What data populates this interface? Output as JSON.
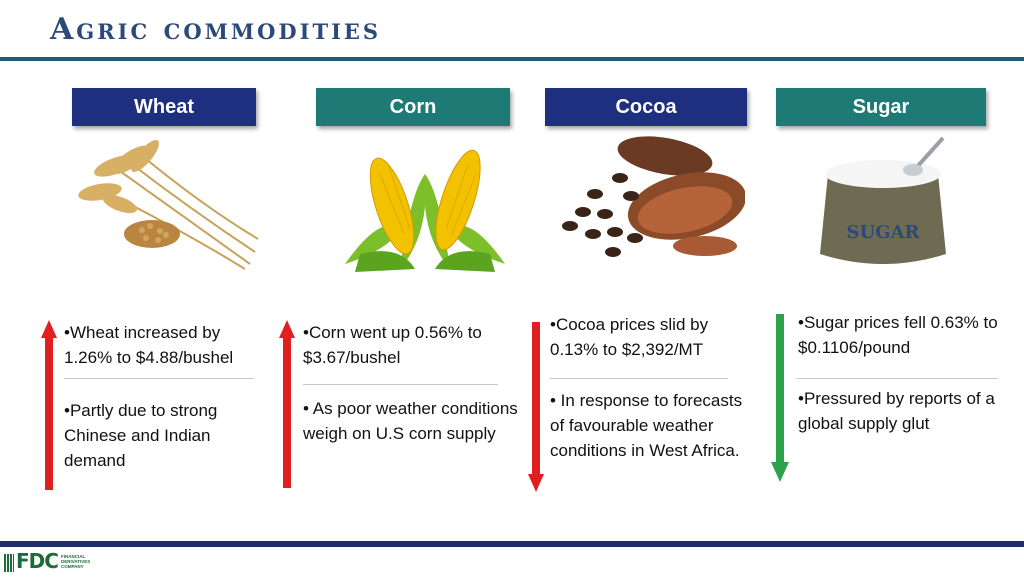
{
  "title": "Agric commodities",
  "colors": {
    "navy": "#1f2f7f",
    "teal": "#1e7a74",
    "up": "#e02020",
    "down": "#2aa34a"
  },
  "commodities": [
    {
      "name": "Wheat",
      "header_color": "#1f2f7f",
      "direction": "up",
      "point1": "•Wheat increased by 1.26% to $4.88/bushel",
      "point2": "•Partly due to strong Chinese and Indian demand"
    },
    {
      "name": "Corn",
      "header_color": "#1e7a74",
      "direction": "up",
      "point1": "•Corn went up 0.56%  to $3.67/bushel",
      "point2": "• As poor weather conditions weigh on U.S corn supply"
    },
    {
      "name": "Cocoa",
      "header_color": "#1f2f7f",
      "direction": "down",
      "point1": "•Cocoa prices slid by 0.13% to $2,392/MT",
      "point2": "• In response to forecasts of favourable weather conditions in West Africa."
    },
    {
      "name": "Sugar",
      "header_color": "#1e7a74",
      "direction": "down",
      "point1": "•Sugar prices fell 0.63% to $0.1106/pound",
      "point2": "•Pressured by reports of a global supply glut",
      "bag_label": "SUGAR"
    }
  ],
  "logo": {
    "mark": "FDC",
    "subtitle": "FINANCIAL DERIVATIVES COMPANY"
  }
}
